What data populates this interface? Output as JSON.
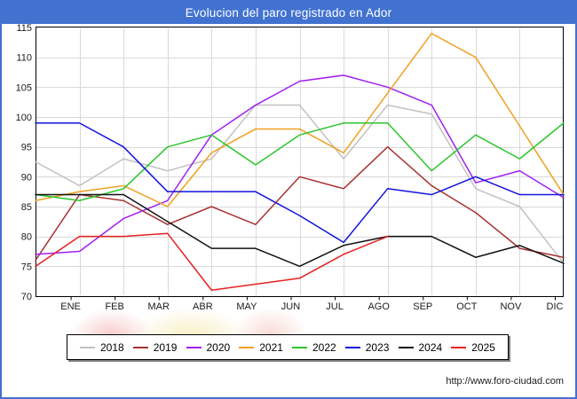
{
  "window": {
    "title": "Evolucion del paro registrado en Ador",
    "footer_link": "http://www.foro-ciudad.com"
  },
  "colors": {
    "frame_blue": "#4272d0",
    "grid": "#d9d9d9",
    "plot_border": "#000000",
    "legend_shadow": "#808080"
  },
  "chart_data": {
    "type": "line",
    "title": "Evolucion del paro registrado en Ador",
    "x_categories": [
      "ENE",
      "FEB",
      "MAR",
      "ABR",
      "MAY",
      "JUN",
      "JUL",
      "AGO",
      "SEP",
      "OCT",
      "NOV",
      "DIC"
    ],
    "y_tick_labels": [
      115,
      110,
      105,
      100,
      95,
      90,
      85,
      80,
      75,
      70
    ],
    "ylim": [
      70,
      115
    ],
    "grid": true,
    "legend_position": "bottom",
    "points_note": "first value of each series sits on the left plot border (previous December), followed by the 12 monthly values ENE-DIC",
    "series": [
      {
        "name": "2018",
        "color": "#c2c2c2",
        "values": [
          92.5,
          88.5,
          93,
          91,
          93,
          102,
          102,
          93,
          102,
          100.5,
          88,
          85,
          75.5
        ]
      },
      {
        "name": "2019",
        "color": "#a83232",
        "values": [
          76,
          87,
          86,
          82,
          85,
          82,
          90,
          88,
          95,
          88.5,
          84,
          78,
          76.5
        ]
      },
      {
        "name": "2020",
        "color": "#a020f0",
        "values": [
          77,
          77.5,
          83,
          86,
          97,
          102,
          106,
          107,
          105,
          102,
          89,
          91,
          86.5
        ]
      },
      {
        "name": "2021",
        "color": "#f0a020",
        "values": [
          86,
          87.5,
          88.5,
          85,
          94,
          98,
          98,
          94,
          104,
          114,
          110,
          98.5,
          87
        ]
      },
      {
        "name": "2022",
        "color": "#2dc52d",
        "values": [
          87,
          86,
          88,
          95,
          97,
          92,
          97,
          99,
          99,
          91,
          97,
          93,
          99
        ]
      },
      {
        "name": "2023",
        "color": "#1414dc",
        "values": [
          99,
          99,
          95,
          87.5,
          87.5,
          87.5,
          83.5,
          79,
          88,
          87,
          90,
          87,
          87
        ]
      },
      {
        "name": "2024",
        "color": "#111111",
        "values": [
          87,
          87,
          87,
          82.5,
          78,
          78,
          75,
          78.5,
          80,
          80,
          76.5,
          78.5,
          75.5
        ]
      },
      {
        "name": "2025",
        "color": "#e62020",
        "values": [
          75,
          80,
          80,
          80.5,
          71,
          72,
          73,
          77,
          80
        ]
      }
    ]
  }
}
